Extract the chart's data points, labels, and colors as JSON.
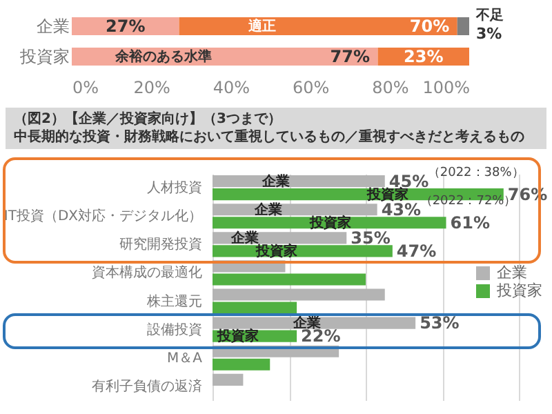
{
  "chart_data": [
    {
      "type": "bar",
      "orientation": "horizontal",
      "stacked": true,
      "categories": [
        "企業",
        "投資家"
      ],
      "series": [
        {
          "name": "余裕のある水準",
          "color": "#f4a89a",
          "values": [
            27,
            77
          ],
          "value_labels": [
            "27%",
            "77%"
          ]
        },
        {
          "name": "適正",
          "color": "#f07c3c",
          "values": [
            70,
            23
          ],
          "value_labels": [
            "70%",
            "23%"
          ]
        },
        {
          "name": "不足",
          "color": "#7f7f7f",
          "values": [
            3,
            null
          ],
          "value_labels": [
            "3%",
            null
          ]
        }
      ],
      "xlim": [
        0,
        100
      ],
      "xticks": [
        {
          "value": 0,
          "label": "0%"
        },
        {
          "value": 20,
          "label": "20%"
        },
        {
          "value": 40,
          "label": "40%"
        },
        {
          "value": 60,
          "label": "60%"
        },
        {
          "value": 80,
          "label": "80%"
        },
        {
          "value": 100,
          "label": "100%"
        }
      ],
      "grid": false,
      "legend": false
    },
    {
      "type": "bar",
      "orientation": "horizontal",
      "title": "（図2）【企業／投資家向け】（3つまで）",
      "subtitle": "中長期的な投資・財務戦略において重視しているもの／重視すべきだと考えるもの",
      "categories": [
        "人材投資",
        "IT投資（DX対応・デジタル化）",
        "研究開発投資",
        "資本構成の最適化",
        "株主還元",
        "設備投資",
        "M＆A",
        "有利子負債の返済"
      ],
      "series": [
        {
          "name": "企業",
          "color": "#b4b4b4",
          "values": [
            45,
            43,
            35,
            19,
            45,
            53,
            33,
            8
          ],
          "value_labels": [
            "45%",
            "43%",
            "35%",
            null,
            null,
            "53%",
            null,
            null
          ]
        },
        {
          "name": "投資家",
          "color": "#50b041",
          "values": [
            76,
            61,
            47,
            40,
            22,
            22,
            15,
            null
          ],
          "value_labels": [
            "76%",
            "61%",
            "47%",
            null,
            null,
            "22%",
            null,
            null
          ]
        }
      ],
      "xlim": [
        0,
        80
      ],
      "xticks": [
        {
          "value": 0,
          "label": null
        },
        {
          "value": 20,
          "label": null
        },
        {
          "value": 40,
          "label": null
        },
        {
          "value": 60,
          "label": null
        },
        {
          "value": 80,
          "label": null
        }
      ],
      "tick_labels": "y",
      "grid": "x",
      "legend": "right",
      "annotations": [
        "（2022：38%）",
        "（2022：72%）"
      ]
    }
  ]
}
